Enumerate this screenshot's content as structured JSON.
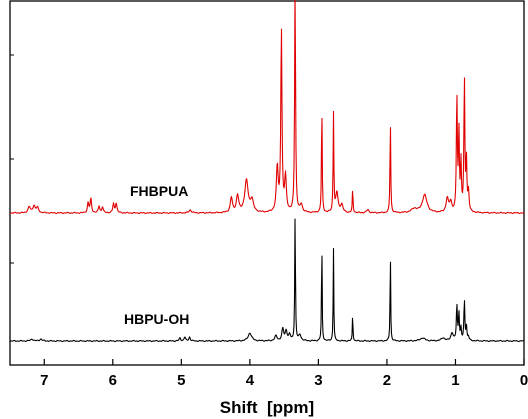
{
  "chart_data": {
    "type": "line",
    "title": "",
    "xlabel": "Shift  [ppm]",
    "ylabel": "",
    "xlim": [
      7.5,
      0
    ],
    "x_reversed": true,
    "x_ticks": [
      7,
      6,
      5,
      4,
      3,
      2,
      1,
      0
    ],
    "x_tick_labels": [
      "7",
      "6",
      "5",
      "4",
      "3",
      "2",
      "1",
      "0"
    ],
    "y_ticks_visible": false,
    "grid": false,
    "legend": "none",
    "series": [
      {
        "name": "FHBPUA",
        "color": "#e00000",
        "baseline": 213,
        "peaks": [
          {
            "x": 7.22,
            "h": 6,
            "w": 0.02
          },
          {
            "x": 7.15,
            "h": 7,
            "w": 0.02
          },
          {
            "x": 7.1,
            "h": 5,
            "w": 0.02
          },
          {
            "x": 6.36,
            "h": 10,
            "w": 0.012
          },
          {
            "x": 6.32,
            "h": 14,
            "w": 0.012
          },
          {
            "x": 6.2,
            "h": 7,
            "w": 0.012
          },
          {
            "x": 6.15,
            "h": 6,
            "w": 0.012
          },
          {
            "x": 5.99,
            "h": 9,
            "w": 0.012
          },
          {
            "x": 5.95,
            "h": 10,
            "w": 0.012
          },
          {
            "x": 4.87,
            "h": 3,
            "w": 0.02
          },
          {
            "x": 4.27,
            "h": 15,
            "w": 0.018
          },
          {
            "x": 4.18,
            "h": 17,
            "w": 0.02
          },
          {
            "x": 4.05,
            "h": 32,
            "w": 0.03
          },
          {
            "x": 3.97,
            "h": 12,
            "w": 0.025
          },
          {
            "x": 3.6,
            "h": 45,
            "w": 0.016
          },
          {
            "x": 3.54,
            "h": 183,
            "w": 0.01
          },
          {
            "x": 3.48,
            "h": 35,
            "w": 0.015
          },
          {
            "x": 3.34,
            "h": 230,
            "w": 0.008
          },
          {
            "x": 3.25,
            "h": 8,
            "w": 0.02
          },
          {
            "x": 2.95,
            "h": 110,
            "w": 0.006
          },
          {
            "x": 2.78,
            "h": 99,
            "w": 0.006
          },
          {
            "x": 2.73,
            "h": 20,
            "w": 0.02
          },
          {
            "x": 2.66,
            "h": 8,
            "w": 0.02
          },
          {
            "x": 2.5,
            "h": 24,
            "w": 0.006
          },
          {
            "x": 2.28,
            "h": 3,
            "w": 0.02
          },
          {
            "x": 1.95,
            "h": 95,
            "w": 0.006
          },
          {
            "x": 1.6,
            "h": 4,
            "w": 0.05
          },
          {
            "x": 1.45,
            "h": 18,
            "w": 0.04
          },
          {
            "x": 1.12,
            "h": 14,
            "w": 0.02
          },
          {
            "x": 1.07,
            "h": 10,
            "w": 0.02
          },
          {
            "x": 0.98,
            "h": 118,
            "w": 0.008
          },
          {
            "x": 0.95,
            "h": 80,
            "w": 0.008
          },
          {
            "x": 0.92,
            "h": 48,
            "w": 0.008
          },
          {
            "x": 0.87,
            "h": 134,
            "w": 0.008
          },
          {
            "x": 0.84,
            "h": 50,
            "w": 0.008
          },
          {
            "x": 0.81,
            "h": 20,
            "w": 0.01
          }
        ]
      },
      {
        "name": "HBPU-OH",
        "color": "#000000",
        "baseline": 341,
        "peaks": [
          {
            "x": 7.18,
            "h": 2,
            "w": 0.02
          },
          {
            "x": 7.05,
            "h": 2,
            "w": 0.02
          },
          {
            "x": 5.02,
            "h": 3,
            "w": 0.012
          },
          {
            "x": 4.95,
            "h": 4,
            "w": 0.012
          },
          {
            "x": 4.88,
            "h": 4,
            "w": 0.012
          },
          {
            "x": 4.0,
            "h": 8,
            "w": 0.03
          },
          {
            "x": 3.62,
            "h": 5,
            "w": 0.02
          },
          {
            "x": 3.52,
            "h": 12,
            "w": 0.016
          },
          {
            "x": 3.47,
            "h": 10,
            "w": 0.016
          },
          {
            "x": 3.42,
            "h": 6,
            "w": 0.016
          },
          {
            "x": 3.34,
            "h": 128,
            "w": 0.006
          },
          {
            "x": 3.27,
            "h": 6,
            "w": 0.02
          },
          {
            "x": 2.95,
            "h": 106,
            "w": 0.005
          },
          {
            "x": 2.78,
            "h": 93,
            "w": 0.005
          },
          {
            "x": 2.5,
            "h": 28,
            "w": 0.005
          },
          {
            "x": 1.95,
            "h": 92,
            "w": 0.005
          },
          {
            "x": 1.48,
            "h": 3,
            "w": 0.04
          },
          {
            "x": 1.18,
            "h": 3,
            "w": 0.03
          },
          {
            "x": 1.05,
            "h": 8,
            "w": 0.02
          },
          {
            "x": 0.98,
            "h": 36,
            "w": 0.008
          },
          {
            "x": 0.95,
            "h": 28,
            "w": 0.008
          },
          {
            "x": 0.92,
            "h": 12,
            "w": 0.008
          },
          {
            "x": 0.87,
            "h": 40,
            "w": 0.008
          },
          {
            "x": 0.84,
            "h": 14,
            "w": 0.008
          },
          {
            "x": 0.81,
            "h": 4,
            "w": 0.01
          }
        ]
      }
    ],
    "series_labels": [
      {
        "text": "FHBPUA"
      },
      {
        "text": "HBPU-OH"
      }
    ]
  }
}
